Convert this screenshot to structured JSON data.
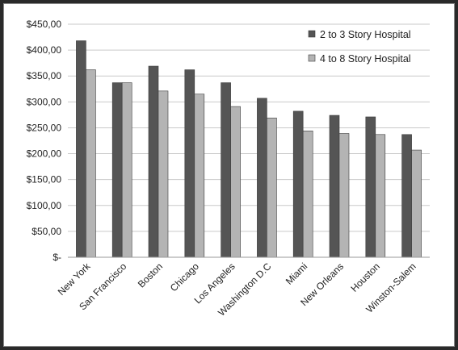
{
  "chart_data": {
    "type": "bar",
    "title": "",
    "xlabel": "",
    "ylabel": "",
    "categories": [
      "New York",
      "San Francisco",
      "Boston",
      "Chicago",
      "Los Angeles",
      "Washington D.C",
      "Miami",
      "New Orleans",
      "Houston",
      "Winston-Salem"
    ],
    "series": [
      {
        "name": "2 to 3 Story Hospital",
        "color": "#555555",
        "values": [
          418,
          337,
          369,
          362,
          337,
          307,
          282,
          274,
          271,
          237
        ]
      },
      {
        "name": "4 to 8 Story Hospital",
        "color": "#b4b4b4",
        "values": [
          362,
          337,
          321,
          315,
          291,
          269,
          244,
          239,
          237,
          207
        ]
      }
    ],
    "ylim": [
      0,
      450
    ],
    "yticks": [
      0,
      50,
      100,
      150,
      200,
      250,
      300,
      350,
      400,
      450
    ],
    "ytick_labels": [
      "$-",
      "$50,00",
      "$100,00",
      "$150,00",
      "$200,00",
      "$250,00",
      "$300,00",
      "$350,00",
      "$400,00",
      "$450,00"
    ],
    "grid": true,
    "legend_position": "top-right"
  }
}
